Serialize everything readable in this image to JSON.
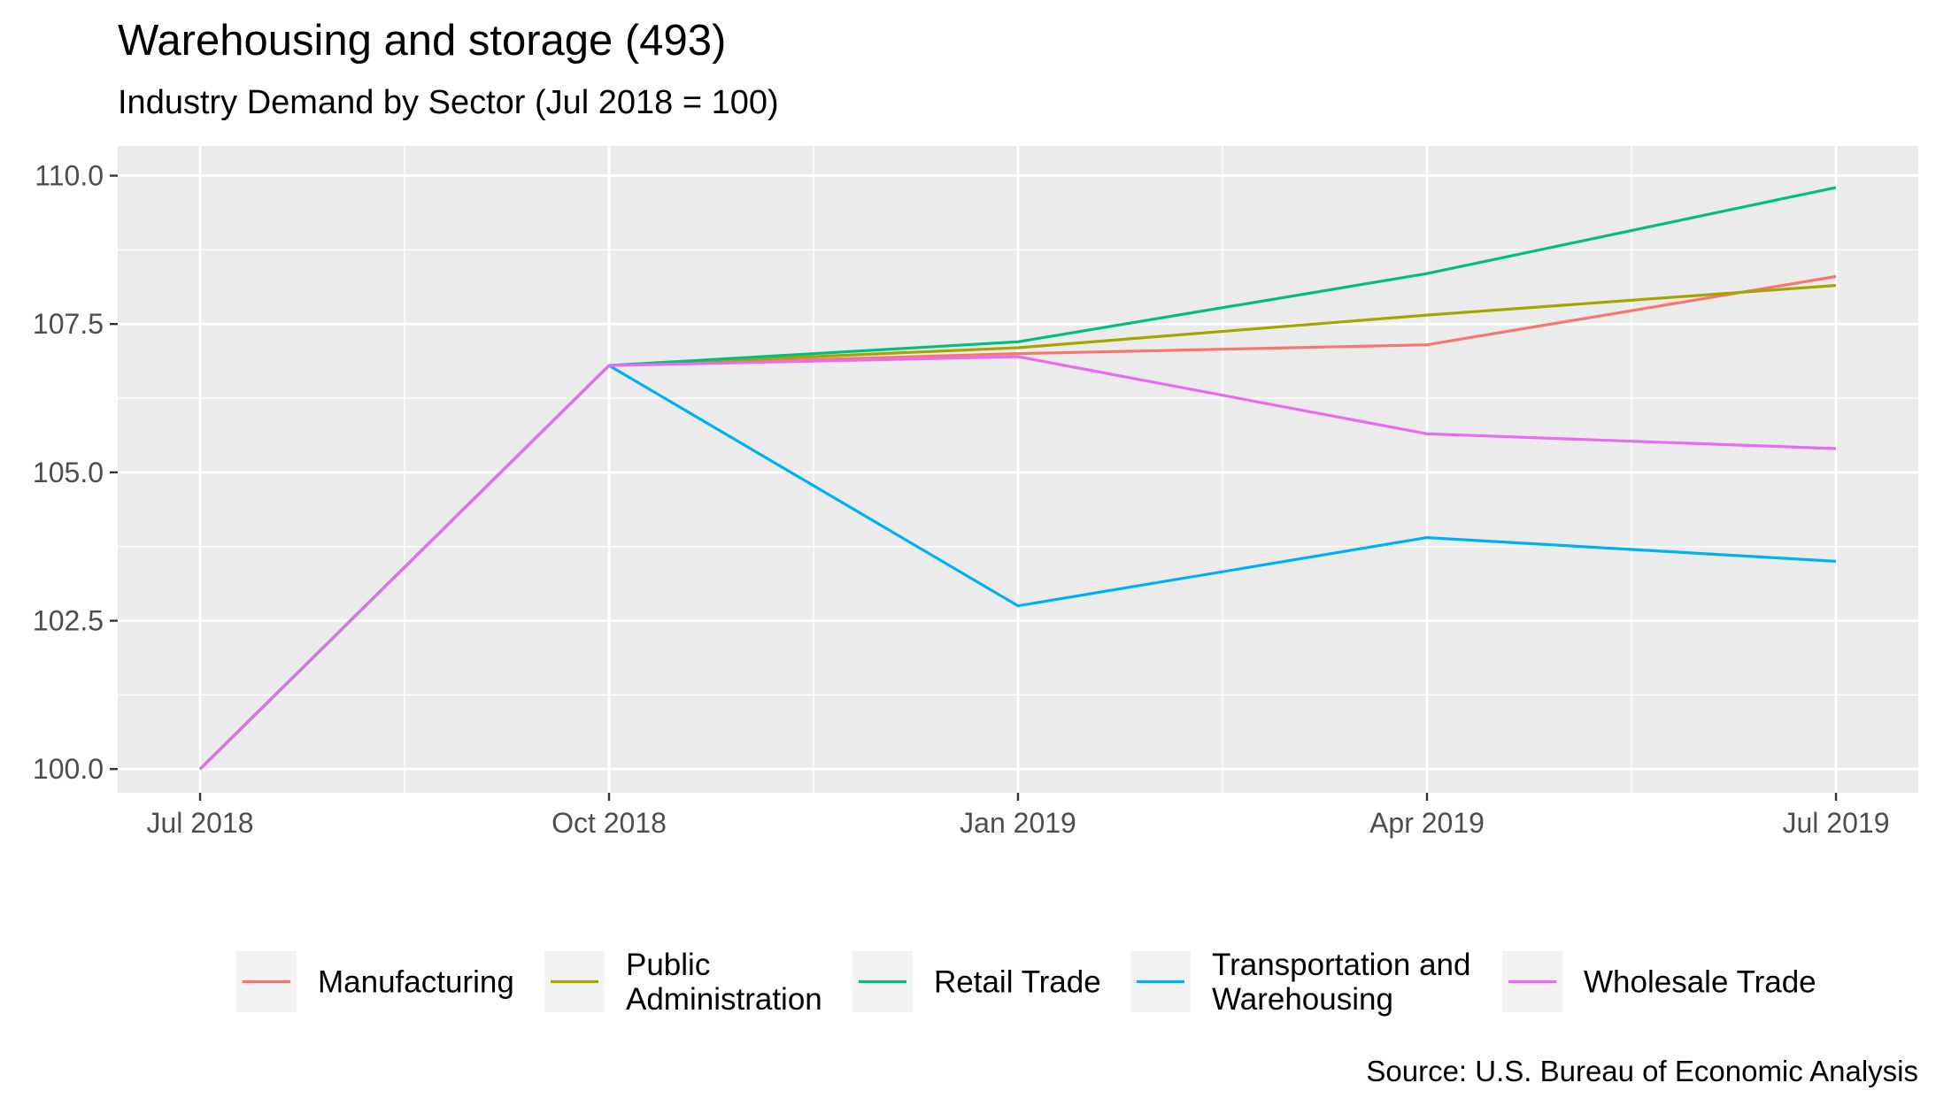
{
  "chart_data": {
    "type": "line",
    "title": "Warehousing and storage (493)",
    "subtitle": "Industry Demand by Sector (Jul 2018 = 100)",
    "caption": "Source: U.S. Bureau of Economic Analysis",
    "xlabel": "",
    "ylabel": "",
    "x": [
      "Jul 2018",
      "Oct 2018",
      "Jan 2019",
      "Apr 2019",
      "Jul 2019"
    ],
    "x_tick_labels": [
      "Jul 2018",
      "Oct 2018",
      "Jan 2019",
      "Apr 2019",
      "Jul 2019"
    ],
    "y_tick_labels": [
      "100.0",
      "102.5",
      "105.0",
      "107.5",
      "110.0"
    ],
    "y_ticks": [
      100.0,
      102.5,
      105.0,
      107.5,
      110.0
    ],
    "ylim": [
      99.6,
      110.5
    ],
    "grid": true,
    "legend_position": "bottom",
    "series": [
      {
        "name": "Manufacturing",
        "color": "#F8766D",
        "values": [
          100.0,
          106.8,
          107.0,
          107.15,
          108.3
        ]
      },
      {
        "name": "Public\nAdministration",
        "color": "#A3A500",
        "values": [
          100.0,
          106.8,
          107.1,
          107.65,
          108.15
        ]
      },
      {
        "name": "Retail Trade",
        "color": "#00BF7D",
        "values": [
          100.0,
          106.8,
          107.2,
          108.35,
          109.8
        ]
      },
      {
        "name": "Transportation and\nWarehousing",
        "color": "#00B0F6",
        "values": [
          100.0,
          106.8,
          102.75,
          103.9,
          103.5
        ]
      },
      {
        "name": "Wholesale Trade",
        "color": "#E76BF3",
        "values": [
          100.0,
          106.8,
          106.95,
          105.65,
          105.4
        ]
      }
    ]
  }
}
